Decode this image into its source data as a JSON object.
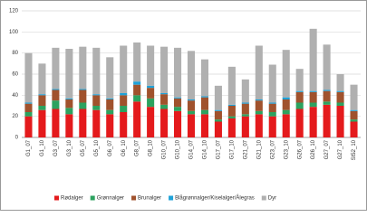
{
  "chart_data": {
    "type": "stacked-bar",
    "categories": [
      "G1_07",
      "G1_10",
      "G3_07",
      "G3_10",
      "G5_07",
      "G5_10",
      "G6_07",
      "G6_10",
      "G8_07",
      "G8_10",
      "G10_07",
      "G10_10",
      "G14_07",
      "G14_10",
      "G17_07",
      "G17_10",
      "G21_07",
      "G21_10",
      "G23_07",
      "G23_10",
      "G26_07",
      "G26_10",
      "G27_07",
      "G27_10",
      "St52_10"
    ],
    "series": [
      {
        "name": "Rødalger",
        "color": "#e41a1c",
        "values": [
          20,
          26,
          27,
          22,
          27,
          26,
          22,
          24,
          34,
          29,
          27,
          25,
          22,
          22,
          15,
          18,
          20,
          22,
          20,
          22,
          27,
          29,
          31,
          30,
          15
        ]
      },
      {
        "name": "Grønnalger",
        "color": "#2ca25f",
        "values": [
          4,
          4,
          8,
          6,
          6,
          4,
          4,
          6,
          6,
          8,
          4,
          4,
          3,
          4,
          2,
          2,
          2,
          3,
          4,
          4,
          6,
          4,
          3,
          3,
          2
        ]
      },
      {
        "name": "Brunalger",
        "color": "#a0522d",
        "values": [
          8,
          10,
          10,
          8,
          12,
          10,
          10,
          10,
          10,
          10,
          10,
          8,
          10,
          12,
          8,
          10,
          10,
          10,
          8,
          10,
          10,
          10,
          10,
          10,
          8
        ]
      },
      {
        "name": "Blågrønnalger/Kiselalger/Ålegras",
        "color": "#1fa2d8",
        "values": [
          1,
          1,
          1,
          1,
          1,
          1,
          1,
          2,
          3,
          2,
          1,
          1,
          1,
          1,
          1,
          1,
          1,
          1,
          1,
          2,
          1,
          1,
          1,
          1,
          1
        ]
      },
      {
        "name": "Dyr",
        "color": "#b0b0b0",
        "values": [
          47,
          29,
          39,
          47,
          40,
          44,
          39,
          45,
          37,
          38,
          44,
          47,
          46,
          35,
          23,
          36,
          22,
          51,
          36,
          45,
          21,
          59,
          43,
          16,
          24
        ]
      }
    ],
    "ylim": [
      0,
      120
    ],
    "yticks": [
      0,
      20,
      40,
      60,
      80,
      100,
      120
    ],
    "grid": true
  }
}
